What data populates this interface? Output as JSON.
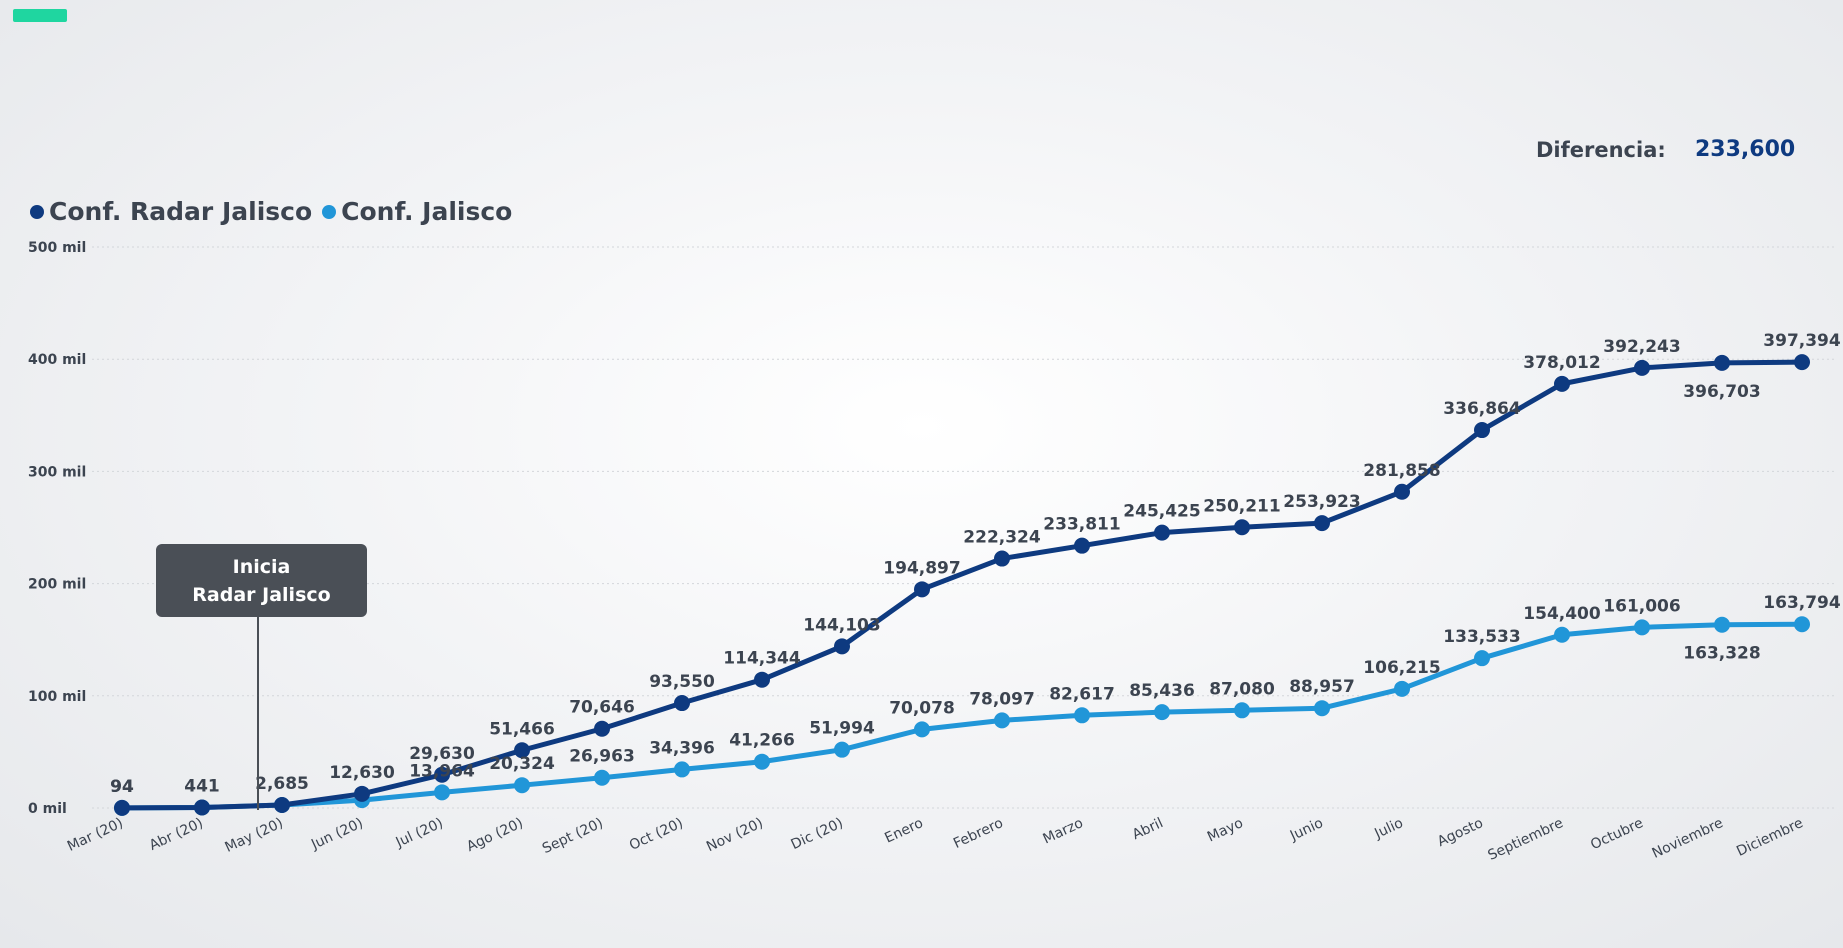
{
  "colors": {
    "accent": "#1fd6a0",
    "series_dark": "#0e3a80",
    "series_light": "#2196d8",
    "diff_value": "#0e3a80"
  },
  "header": {
    "diff_label": "Diferencia:",
    "diff_value": "233,600"
  },
  "callout": {
    "line1": "Inicia",
    "line2": "Radar Jalisco"
  },
  "chart_data": {
    "type": "line",
    "categories": [
      "Mar (20)",
      "Abr (20)",
      "May (20)",
      "Jun (20)",
      "Jul (20)",
      "Ago (20)",
      "Sept (20)",
      "Oct (20)",
      "Nov (20)",
      "Dic (20)",
      "Enero",
      "Febrero",
      "Marzo",
      "Abril",
      "Mayo",
      "Junio",
      "Julio",
      "Agosto",
      "Septiembre",
      "Octubre",
      "Noviembre",
      "Diciembre"
    ],
    "ylim": [
      0,
      500000
    ],
    "yticks": [
      0,
      100000,
      200000,
      300000,
      400000,
      500000
    ],
    "ytick_labels": [
      "0 mil",
      "100 mil",
      "200 mil",
      "300 mil",
      "400 mil",
      "500 mil"
    ],
    "grid": true,
    "legend_position": "top-left",
    "series": [
      {
        "name": "Conf. Radar Jalisco",
        "color": "#0e3a80",
        "values": [
          94,
          441,
          2685,
          12630,
          29630,
          51466,
          70646,
          93550,
          114344,
          144103,
          194897,
          222324,
          233811,
          245425,
          250211,
          253923,
          281858,
          336864,
          378012,
          392243,
          396703,
          397394
        ],
        "labels": [
          "94",
          "441",
          "2,685",
          "12,630",
          "29,630",
          "51,466",
          "70,646",
          "93,550",
          "114,344",
          "144,103",
          "194,897",
          "222,324",
          "233,811",
          "245,425",
          "250,211",
          "253,923",
          "281,858",
          "336,864",
          "378,012",
          "392,243",
          "396,703",
          "397,394"
        ],
        "label_pos": [
          "above",
          "above",
          "above",
          "above",
          "above",
          "above",
          "above",
          "above",
          "above",
          "above",
          "above",
          "above",
          "above",
          "above",
          "above",
          "above",
          "above",
          "above",
          "above",
          "above",
          "below",
          "above"
        ]
      },
      {
        "name": "Conf. Jalisco",
        "color": "#2196d8",
        "values": [
          94,
          441,
          2685,
          7000,
          13964,
          20324,
          26963,
          34396,
          41266,
          51994,
          70078,
          78097,
          82617,
          85436,
          87080,
          88957,
          106215,
          133533,
          154400,
          161006,
          163328,
          163794
        ],
        "labels": [
          "94",
          "",
          "",
          "",
          "13,964",
          "20,324",
          "26,963",
          "34,396",
          "41,266",
          "51,994",
          "70,078",
          "78,097",
          "82,617",
          "85,436",
          "87,080",
          "88,957",
          "106,215",
          "133,533",
          "154,400",
          "161,006",
          "163,328",
          "163,794"
        ],
        "label_pos": [
          "above",
          "above",
          "above",
          "above",
          "above",
          "above",
          "above",
          "above",
          "above",
          "above",
          "above",
          "above",
          "above",
          "above",
          "above",
          "above",
          "above",
          "above",
          "above",
          "above",
          "below",
          "above"
        ]
      }
    ]
  }
}
